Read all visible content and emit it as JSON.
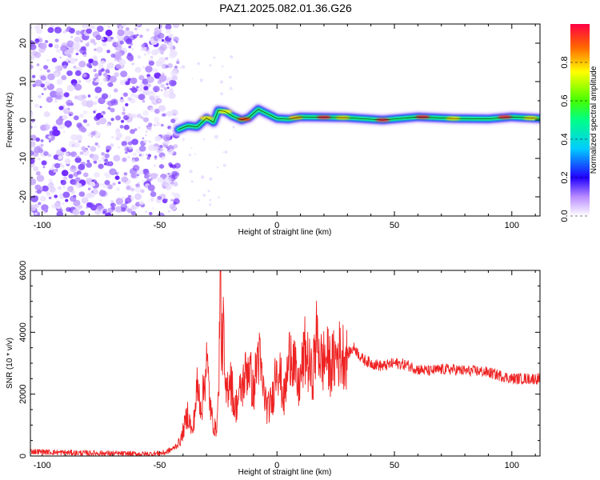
{
  "title": "PAZ1.2025.082.01.36.G26",
  "chart_data": [
    {
      "type": "heatmap",
      "xlabel": "Height of straight line (km)",
      "ylabel": "Frequency (Hz)",
      "xlim": [
        -105,
        112
      ],
      "ylim": [
        -25,
        25
      ],
      "xticks": [
        -100,
        -50,
        0,
        50,
        100
      ],
      "xtick_labels": [
        "-100",
        "-50",
        "0",
        "50",
        "100"
      ],
      "yticks": [
        -20,
        -10,
        0,
        10,
        20
      ],
      "ytick_labels": [
        "-20",
        "-10",
        "0",
        "10",
        "20"
      ],
      "noise_region_x": [
        -105,
        -42
      ],
      "ridge": [
        {
          "x": -42,
          "f": -2.5
        },
        {
          "x": -38,
          "f": -1.5
        },
        {
          "x": -34,
          "f": -1.8
        },
        {
          "x": -30,
          "f": 0.5
        },
        {
          "x": -27,
          "f": -0.6
        },
        {
          "x": -25,
          "f": 2.5
        },
        {
          "x": -22,
          "f": 2.2
        },
        {
          "x": -19,
          "f": 1.0
        },
        {
          "x": -15,
          "f": 0.0
        },
        {
          "x": -12,
          "f": 0.6
        },
        {
          "x": -8,
          "f": 2.8
        },
        {
          "x": -4,
          "f": 1.6
        },
        {
          "x": 0,
          "f": 0.4
        },
        {
          "x": 5,
          "f": 0.2
        },
        {
          "x": 10,
          "f": 0.8
        },
        {
          "x": 20,
          "f": 0.7
        },
        {
          "x": 30,
          "f": 0.6
        },
        {
          "x": 45,
          "f": 0.0
        },
        {
          "x": 60,
          "f": 0.8
        },
        {
          "x": 75,
          "f": 0.4
        },
        {
          "x": 90,
          "f": 0.3
        },
        {
          "x": 100,
          "f": 0.8
        },
        {
          "x": 112,
          "f": 0.4
        }
      ],
      "colorbar": {
        "label": "Normalized spectral amplitude",
        "range": [
          0,
          1
        ],
        "ticks": [
          0.0,
          0.2,
          0.4,
          0.6,
          0.8
        ],
        "tick_labels": [
          "0.0",
          "0.2",
          "0.4",
          "0.6",
          "0.8"
        ]
      }
    },
    {
      "type": "line",
      "xlabel": "Height of straight line (km)",
      "ylabel": "SNR (10 * v/v)",
      "xlim": [
        -105,
        112
      ],
      "ylim": [
        0,
        6000
      ],
      "xticks": [
        -100,
        -50,
        0,
        50,
        100
      ],
      "xtick_labels": [
        "-100",
        "-50",
        "0",
        "50",
        "100"
      ],
      "yticks": [
        0,
        2000,
        4000,
        6000
      ],
      "ytick_labels": [
        "0",
        "2000",
        "4000",
        "6000"
      ],
      "color": "#ee2222",
      "series": [
        {
          "x": [
            -105,
            -95,
            -85,
            -75,
            -65,
            -55,
            -48,
            -44,
            -41,
            -38,
            -36,
            -34,
            -32,
            -30,
            -28,
            -26,
            -25,
            -24,
            -23.5,
            -23,
            -22,
            -20,
            -18,
            -15,
            -12,
            -10,
            -8,
            -6,
            -4,
            -2,
            0,
            3,
            6,
            9,
            12,
            15,
            17,
            19,
            21,
            23,
            26,
            30,
            33,
            36,
            40,
            45,
            50,
            55,
            60,
            65,
            70,
            75,
            80,
            85,
            90,
            95,
            100,
            105,
            112
          ],
          "y": [
            150,
            120,
            100,
            90,
            70,
            60,
            100,
            250,
            500,
            1400,
            700,
            2200,
            1600,
            3100,
            1300,
            800,
            1700,
            6000,
            2800,
            4500,
            1800,
            2700,
            1500,
            2200,
            3000,
            2000,
            3400,
            2200,
            1500,
            1800,
            3200,
            1800,
            3600,
            2100,
            3400,
            2500,
            3900,
            3000,
            3200,
            2900,
            3300,
            3300,
            3500,
            3150,
            3000,
            2900,
            3000,
            2950,
            2800,
            2750,
            2800,
            2800,
            2750,
            2750,
            2700,
            2600,
            2500,
            2500,
            2500
          ]
        }
      ]
    }
  ]
}
